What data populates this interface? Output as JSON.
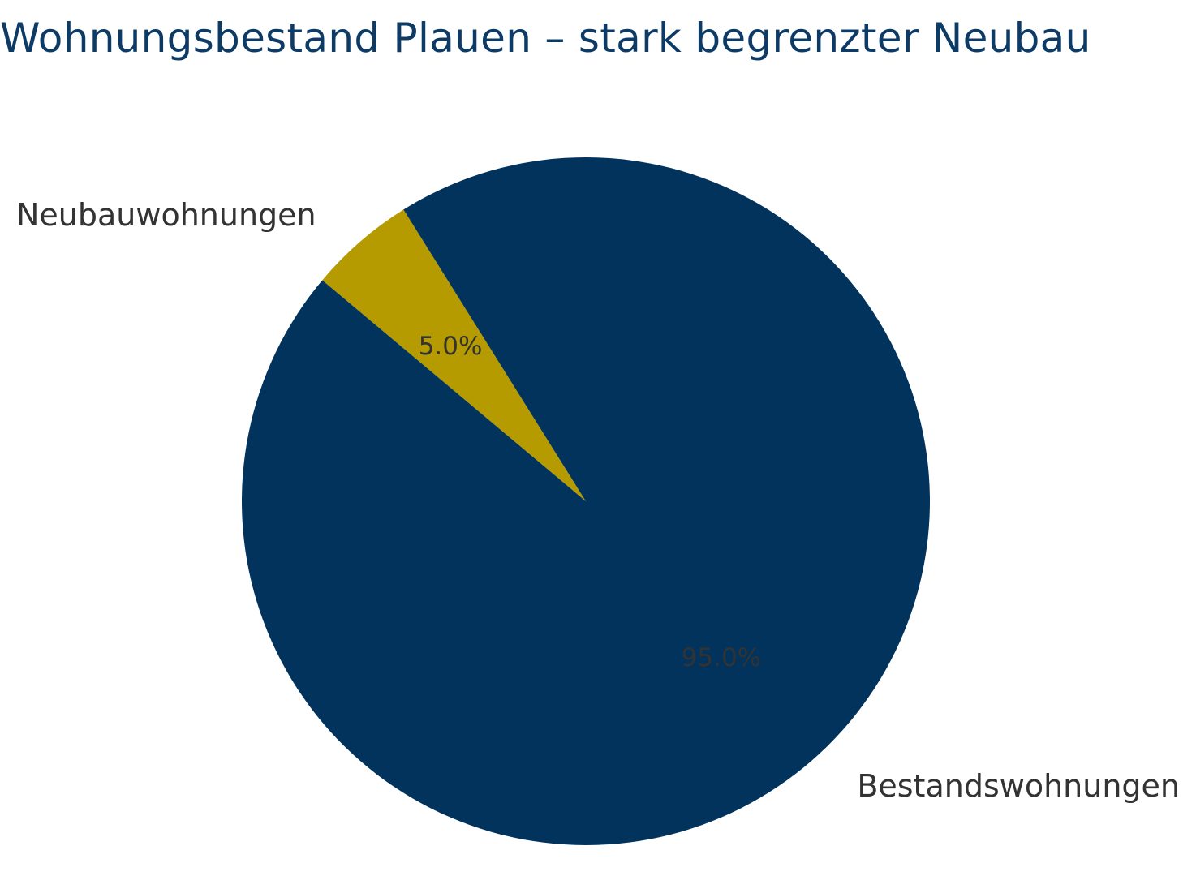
{
  "title": "Wohnungsbestand Plauen – stark begrenzter Neubau",
  "chart_data": {
    "type": "pie",
    "title": "Wohnungsbestand Plauen – stark begrenzter Neubau",
    "categories": [
      "Neubauwohnungen",
      "Bestandswohnungen"
    ],
    "values": [
      5.0,
      95.0
    ],
    "labels_pct": [
      "5.0%",
      "95.0%"
    ],
    "colors": [
      "#b59b00",
      "#02335c"
    ]
  },
  "colors": {
    "title": "#0d3b66",
    "label": "#333333"
  }
}
